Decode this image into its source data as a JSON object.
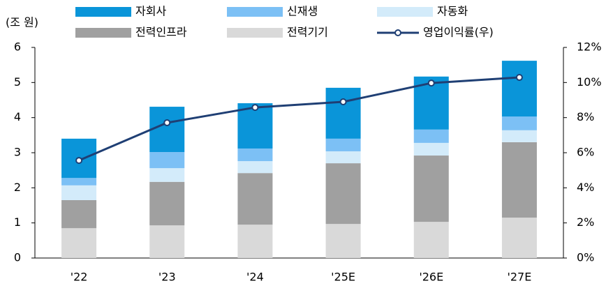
{
  "chart_data": {
    "type": "bar",
    "stacked": true,
    "y_label": "(조 원)",
    "categories": [
      "'22",
      "'23",
      "'24",
      "'25E",
      "'26E",
      "'27E"
    ],
    "series": [
      {
        "name": "전력기기",
        "color": "#d9d9d9",
        "values": [
          0.85,
          0.93,
          0.95,
          0.97,
          1.03,
          1.15
        ]
      },
      {
        "name": "전력인프라",
        "color": "#a0a0a0",
        "values": [
          0.8,
          1.24,
          1.47,
          1.73,
          1.89,
          2.15
        ]
      },
      {
        "name": "자동화",
        "color": "#d3ebfa",
        "values": [
          0.42,
          0.39,
          0.34,
          0.34,
          0.36,
          0.34
        ]
      },
      {
        "name": "신재생",
        "color": "#7cc0f5",
        "values": [
          0.21,
          0.46,
          0.36,
          0.36,
          0.38,
          0.39
        ]
      },
      {
        "name": "자회사",
        "color": "#0a95d9",
        "values": [
          1.12,
          1.29,
          1.29,
          1.45,
          1.51,
          1.59
        ]
      },
      {
        "name": "영업이익률(우)",
        "color": "#1f3f74",
        "type": "line",
        "axis": "y2",
        "values": [
          5.56,
          7.71,
          8.58,
          8.9,
          9.97,
          10.29
        ]
      }
    ],
    "ylim": [
      0,
      6
    ],
    "yticks": [
      0,
      1,
      2,
      3,
      4,
      5,
      6
    ],
    "y2lim": [
      0,
      12
    ],
    "y2ticks": [
      {
        "value": 0,
        "label": "0%"
      },
      {
        "value": 2,
        "label": "2%"
      },
      {
        "value": 4,
        "label": "4%"
      },
      {
        "value": 6,
        "label": "6%"
      },
      {
        "value": 8,
        "label": "8%"
      },
      {
        "value": 10,
        "label": "10%"
      },
      {
        "value": 12,
        "label": "12%"
      }
    ]
  }
}
